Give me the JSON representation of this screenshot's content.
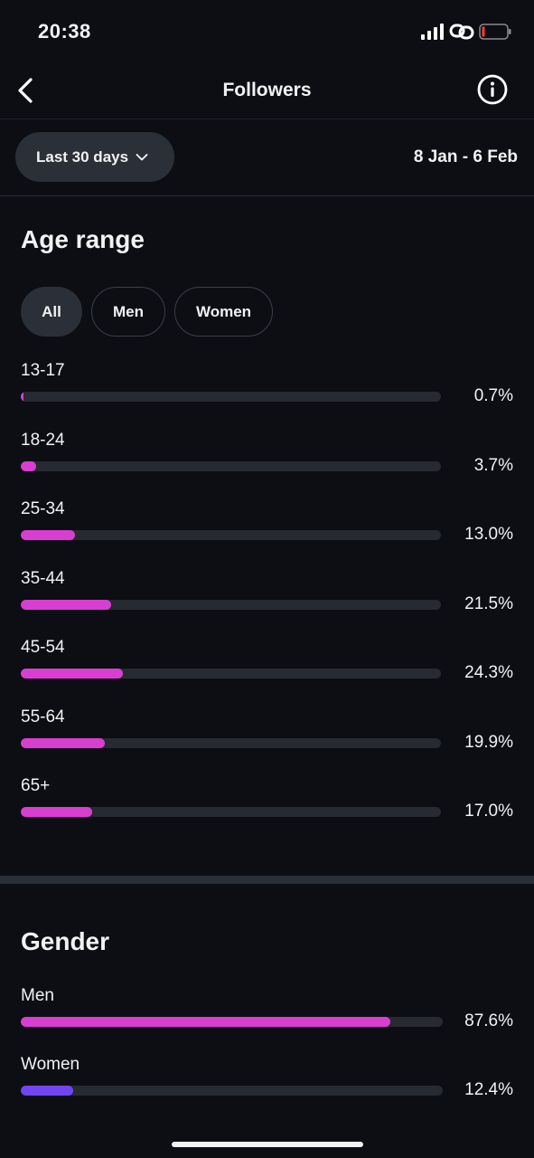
{
  "status": {
    "time": "20:38"
  },
  "header": {
    "title": "Followers"
  },
  "filter": {
    "range_label": "Last 30 days",
    "date_range": "8 Jan - 6 Feb"
  },
  "age": {
    "title": "Age range",
    "chips": [
      "All",
      "Men",
      "Women"
    ],
    "selected_chip": "All",
    "rows": [
      {
        "label": "13-17",
        "value": "0.7%",
        "fraction": 0.007
      },
      {
        "label": "18-24",
        "value": "3.7%",
        "fraction": 0.037
      },
      {
        "label": "25-34",
        "value": "13.0%",
        "fraction": 0.13
      },
      {
        "label": "35-44",
        "value": "21.5%",
        "fraction": 0.215
      },
      {
        "label": "45-54",
        "value": "24.3%",
        "fraction": 0.243
      },
      {
        "label": "55-64",
        "value": "19.9%",
        "fraction": 0.199
      },
      {
        "label": "65+",
        "value": "17.0%",
        "fraction": 0.17
      }
    ]
  },
  "gender": {
    "title": "Gender",
    "rows": [
      {
        "label": "Men",
        "value": "87.6%",
        "fraction": 0.876,
        "color": "#d83fd1"
      },
      {
        "label": "Women",
        "value": "12.4%",
        "fraction": 0.124,
        "color": "#7045f4"
      }
    ]
  },
  "colors": {
    "accent": "#d83fd1",
    "secondary": "#7045f4",
    "track": "#272a31",
    "background": "#0c0e13"
  },
  "icons": [
    "signal-icon",
    "link-icon",
    "battery-icon",
    "back-icon",
    "info-icon",
    "chevron-down-icon"
  ]
}
